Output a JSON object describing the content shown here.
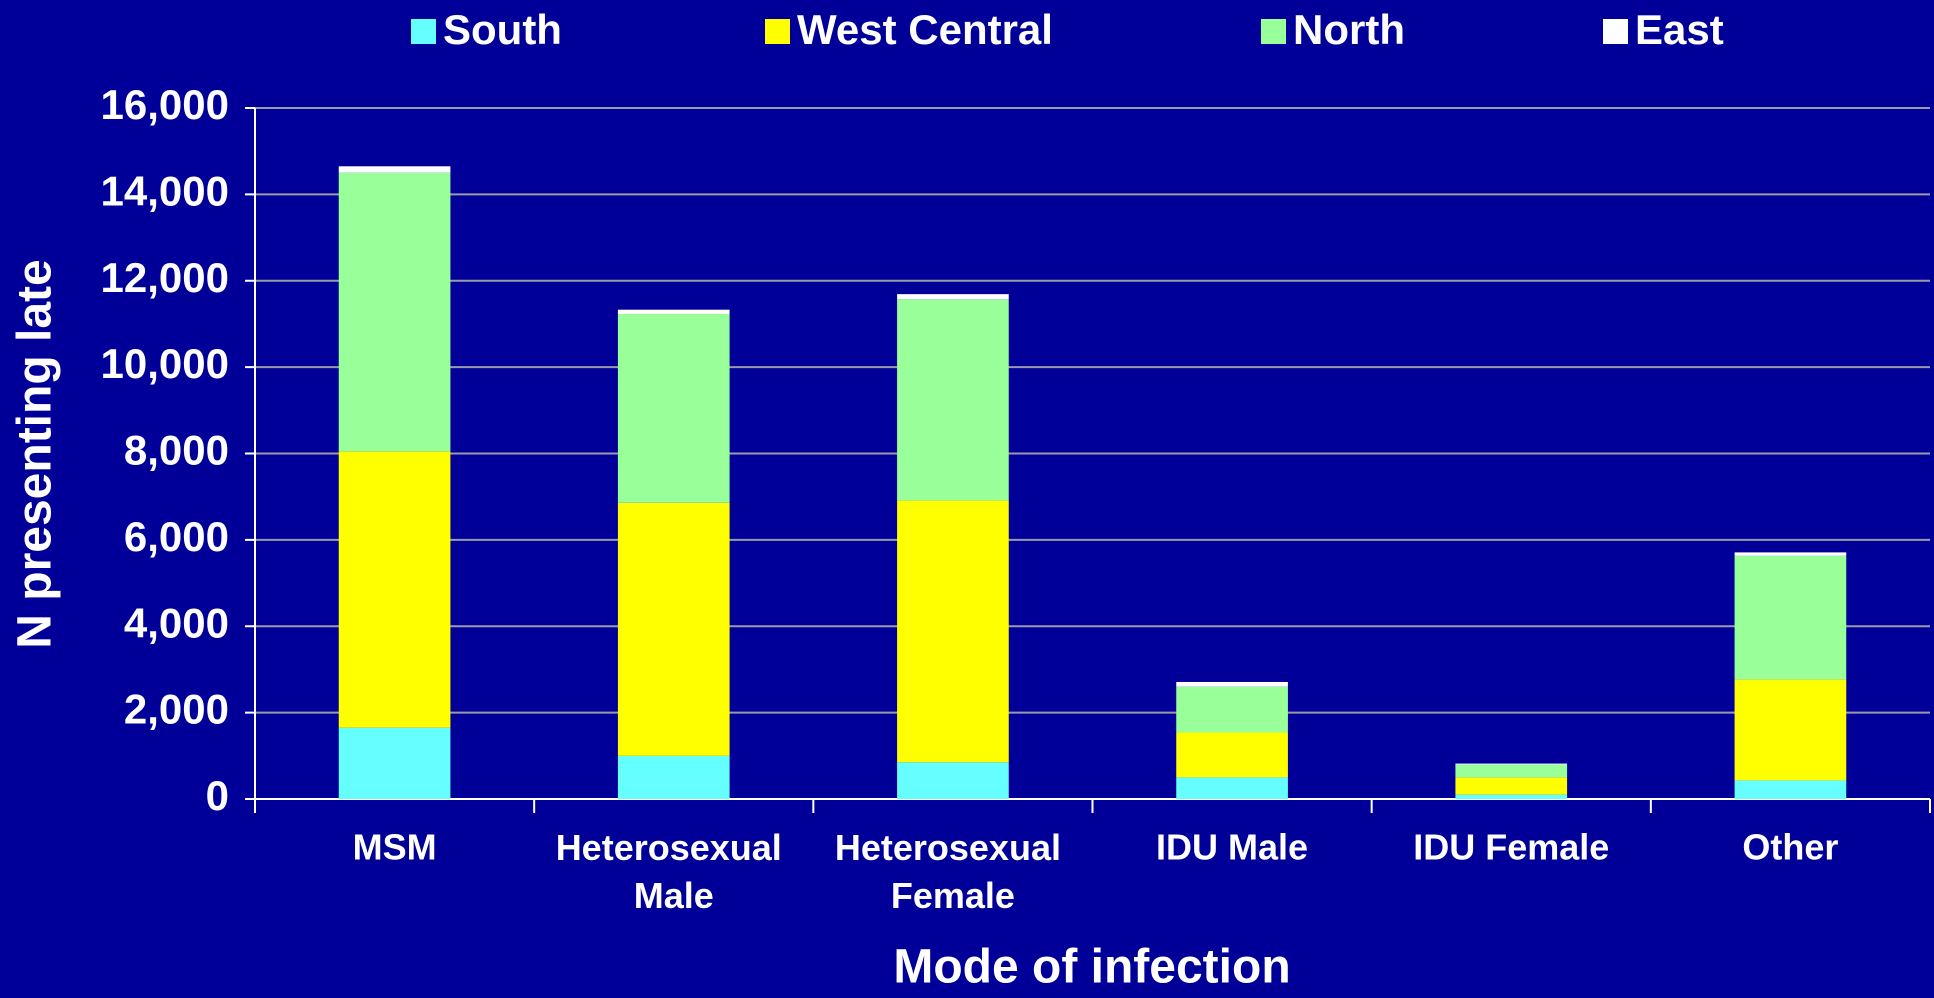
{
  "chart_data": {
    "type": "stacked_bar",
    "x_label": "Mode of infection",
    "y_label": "N presenting late",
    "categories": [
      "MSM",
      "Heterosexual Male",
      "Heterosexual Female",
      "IDU Male",
      "IDU Female",
      "Other"
    ],
    "series": [
      {
        "name": "South",
        "color": "#66ffff",
        "values": [
          1650,
          1000,
          850,
          500,
          100,
          430
        ]
      },
      {
        "name": "West Central",
        "color": "#ffff00",
        "values": [
          6400,
          5860,
          6060,
          1040,
          400,
          2340
        ]
      },
      {
        "name": "North",
        "color": "#99ff99",
        "values": [
          6450,
          4370,
          4660,
          1060,
          300,
          2860
        ]
      },
      {
        "name": "East",
        "color": "#ffffff",
        "values": [
          150,
          100,
          120,
          110,
          20,
          80
        ]
      }
    ],
    "ylim": [
      0,
      16000
    ],
    "yticks": [
      0,
      {
        "value": 2000,
        "label": "2,000"
      },
      {
        "value": 4000,
        "label": "4,000"
      },
      {
        "value": 6000,
        "label": "6,000"
      },
      {
        "value": 8000,
        "label": "8,000"
      },
      {
        "value": 10000,
        "label": "10,000"
      },
      {
        "value": 12000,
        "label": "12,000"
      },
      {
        "value": 14000,
        "label": "14,000"
      },
      {
        "value": 16000,
        "label": "16,000"
      }
    ],
    "grid": true,
    "legend": "top"
  }
}
